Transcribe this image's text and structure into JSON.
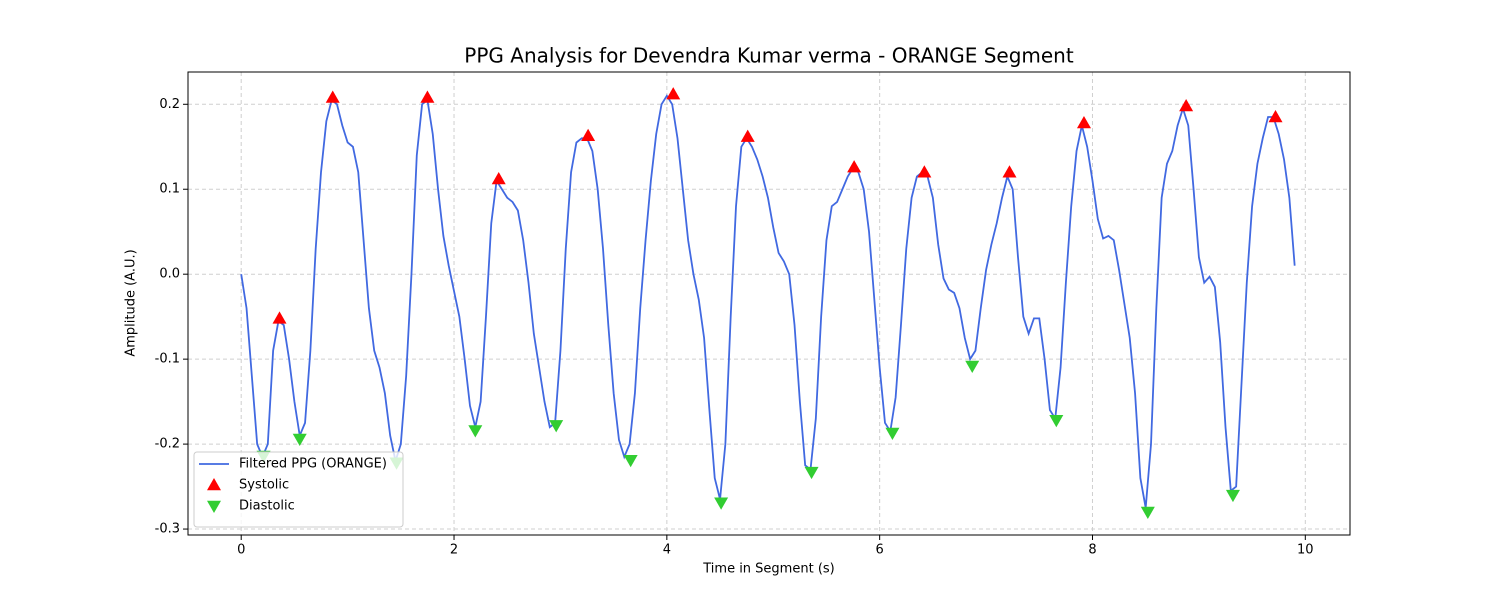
{
  "chart_data": {
    "type": "line",
    "title": "PPG Analysis for Devendra Kumar verma - ORANGE Segment",
    "x_label": "Time in Segment (s)",
    "y_label": "Amplitude (A.U.)",
    "xlim": [
      -0.5,
      10.42
    ],
    "ylim": [
      -0.307,
      0.238
    ],
    "xticks": [
      0,
      2,
      4,
      6,
      8,
      10
    ],
    "yticks": [
      -0.3,
      -0.2,
      -0.1,
      {
        "value": 0,
        "label": "0.0"
      },
      0.1,
      0.2
    ],
    "grid": true,
    "legend": "lower left",
    "series": [
      {
        "name": "Filtered PPG (ORANGE)",
        "type": "line",
        "color": "#4169e1",
        "x": [
          0,
          0.05,
          0.1,
          0.15,
          0.2,
          0.25,
          0.3,
          0.35,
          0.4,
          0.45,
          0.5,
          0.55,
          0.6,
          0.65,
          0.7,
          0.75,
          0.8,
          0.85,
          0.9,
          0.95,
          1.0,
          1.05,
          1.1,
          1.15,
          1.2,
          1.25,
          1.3,
          1.35,
          1.4,
          1.45,
          1.5,
          1.55,
          1.6,
          1.65,
          1.7,
          1.75,
          1.8,
          1.85,
          1.9,
          1.95,
          2.0,
          2.05,
          2.1,
          2.15,
          2.2,
          2.25,
          2.3,
          2.35,
          2.4,
          2.45,
          2.5,
          2.55,
          2.6,
          2.65,
          2.7,
          2.75,
          2.8,
          2.85,
          2.9,
          2.95,
          3.0,
          3.05,
          3.1,
          3.15,
          3.2,
          3.25,
          3.3,
          3.35,
          3.4,
          3.45,
          3.5,
          3.55,
          3.6,
          3.65,
          3.7,
          3.75,
          3.8,
          3.85,
          3.9,
          3.95,
          4.0,
          4.05,
          4.1,
          4.15,
          4.2,
          4.25,
          4.3,
          4.35,
          4.4,
          4.45,
          4.5,
          4.55,
          4.6,
          4.65,
          4.7,
          4.75,
          4.8,
          4.85,
          4.9,
          4.95,
          5.0,
          5.05,
          5.1,
          5.15,
          5.2,
          5.25,
          5.3,
          5.35,
          5.4,
          5.45,
          5.5,
          5.55,
          5.6,
          5.65,
          5.7,
          5.75,
          5.8,
          5.85,
          5.9,
          5.95,
          6.0,
          6.05,
          6.1,
          6.15,
          6.2,
          6.25,
          6.3,
          6.35,
          6.4,
          6.45,
          6.5,
          6.55,
          6.6,
          6.65,
          6.7,
          6.75,
          6.8,
          6.85,
          6.9,
          6.95,
          7.0,
          7.05,
          7.1,
          7.15,
          7.2,
          7.25,
          7.3,
          7.35,
          7.4,
          7.45,
          7.5,
          7.55,
          7.6,
          7.65,
          7.7,
          7.75,
          7.8,
          7.85,
          7.9,
          7.95,
          8.0,
          8.05,
          8.1,
          8.15,
          8.2,
          8.25,
          8.3,
          8.35,
          8.4,
          8.45,
          8.5,
          8.55,
          8.6,
          8.65,
          8.7,
          8.75,
          8.8,
          8.85,
          8.9,
          8.95,
          9.0,
          9.05,
          9.1,
          9.15,
          9.2,
          9.25,
          9.3,
          9.35,
          9.4,
          9.45,
          9.5,
          9.55,
          9.6,
          9.65,
          9.7,
          9.75,
          9.8,
          9.85,
          9.9
        ],
        "values": [
          0.0,
          -0.04,
          -0.12,
          -0.2,
          -0.215,
          -0.2,
          -0.09,
          -0.055,
          -0.06,
          -0.1,
          -0.15,
          -0.19,
          -0.175,
          -0.09,
          0.03,
          0.12,
          0.18,
          0.205,
          0.2,
          0.175,
          0.155,
          0.15,
          0.12,
          0.04,
          -0.04,
          -0.09,
          -0.11,
          -0.14,
          -0.19,
          -0.22,
          -0.2,
          -0.12,
          0.0,
          0.14,
          0.2,
          0.205,
          0.165,
          0.1,
          0.045,
          0.01,
          -0.02,
          -0.05,
          -0.1,
          -0.155,
          -0.18,
          -0.15,
          -0.05,
          0.06,
          0.11,
          0.1,
          0.09,
          0.085,
          0.075,
          0.04,
          -0.01,
          -0.07,
          -0.11,
          -0.15,
          -0.18,
          -0.175,
          -0.09,
          0.03,
          0.12,
          0.155,
          0.16,
          0.16,
          0.145,
          0.1,
          0.03,
          -0.06,
          -0.14,
          -0.195,
          -0.215,
          -0.2,
          -0.14,
          -0.04,
          0.04,
          0.11,
          0.165,
          0.2,
          0.21,
          0.2,
          0.16,
          0.1,
          0.04,
          0.0,
          -0.03,
          -0.075,
          -0.16,
          -0.24,
          -0.265,
          -0.2,
          -0.05,
          0.08,
          0.15,
          0.16,
          0.15,
          0.135,
          0.115,
          0.09,
          0.055,
          0.025,
          0.015,
          0.0,
          -0.06,
          -0.15,
          -0.225,
          -0.23,
          -0.17,
          -0.05,
          0.04,
          0.08,
          0.085,
          0.1,
          0.115,
          0.125,
          0.12,
          0.1,
          0.05,
          -0.03,
          -0.11,
          -0.175,
          -0.185,
          -0.145,
          -0.06,
          0.03,
          0.09,
          0.115,
          0.12,
          0.115,
          0.09,
          0.035,
          -0.005,
          -0.018,
          -0.022,
          -0.04,
          -0.075,
          -0.1,
          -0.09,
          -0.04,
          0.005,
          0.035,
          0.06,
          0.09,
          0.115,
          0.1,
          0.02,
          -0.05,
          -0.07,
          -0.052,
          -0.052,
          -0.1,
          -0.16,
          -0.17,
          -0.11,
          -0.01,
          0.08,
          0.145,
          0.175,
          0.15,
          0.11,
          0.065,
          0.042,
          0.045,
          0.04,
          0.005,
          -0.035,
          -0.075,
          -0.14,
          -0.24,
          -0.275,
          -0.2,
          -0.04,
          0.09,
          0.13,
          0.145,
          0.175,
          0.195,
          0.175,
          0.1,
          0.02,
          -0.01,
          -0.003,
          -0.015,
          -0.08,
          -0.18,
          -0.255,
          -0.25,
          -0.13,
          -0.01,
          0.08,
          0.13,
          0.16,
          0.185,
          0.185,
          0.165,
          0.135,
          0.09,
          0.01
        ]
      },
      {
        "name": "Systolic",
        "type": "scatter",
        "marker": "triangle-up",
        "color": "#ff0000",
        "x": [
          0.36,
          0.86,
          1.75,
          2.42,
          3.26,
          4.06,
          4.76,
          5.76,
          6.42,
          7.22,
          7.92,
          8.88,
          9.72
        ],
        "values": [
          -0.052,
          0.208,
          0.208,
          0.112,
          0.163,
          0.212,
          0.162,
          0.126,
          0.12,
          0.12,
          0.178,
          0.198,
          0.185
        ]
      },
      {
        "name": "Diastolic",
        "type": "scatter",
        "marker": "triangle-down",
        "color": "#32cd32",
        "x": [
          0.21,
          0.55,
          1.46,
          2.2,
          2.96,
          3.66,
          4.51,
          5.36,
          6.12,
          6.87,
          7.66,
          8.52,
          9.32
        ],
        "values": [
          -0.214,
          -0.194,
          -0.222,
          -0.184,
          -0.178,
          -0.219,
          -0.269,
          -0.233,
          -0.187,
          -0.108,
          -0.172,
          -0.28,
          -0.26
        ]
      }
    ]
  }
}
